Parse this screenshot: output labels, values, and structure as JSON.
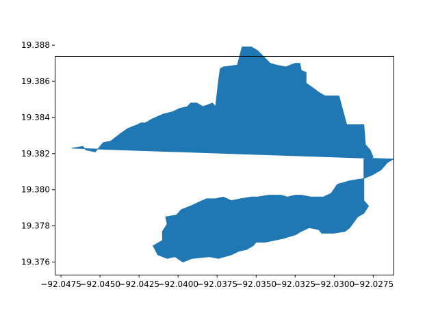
{
  "chart_data": {
    "type": "area",
    "title": "",
    "xlabel": "",
    "ylabel": "",
    "xlim": [
      -92.0479,
      -92.0262
    ],
    "ylim": [
      19.3753,
      19.3874
    ],
    "grid": false,
    "legend": "none",
    "fill_color": "#1f77b4",
    "x_ticks": [
      {
        "value": -92.0475,
        "label": "−92.0475"
      },
      {
        "value": -92.045,
        "label": "−92.0450"
      },
      {
        "value": -92.0425,
        "label": "−92.0425"
      },
      {
        "value": -92.04,
        "label": "−92.0400"
      },
      {
        "value": -92.0375,
        "label": "−92.0375"
      },
      {
        "value": -92.035,
        "label": "−92.0350"
      },
      {
        "value": -92.0325,
        "label": "−92.0325"
      },
      {
        "value": -92.03,
        "label": "−92.0300"
      },
      {
        "value": -92.0275,
        "label": "−92.0275"
      }
    ],
    "y_ticks": [
      {
        "value": 19.376,
        "label": "19.376"
      },
      {
        "value": 19.378,
        "label": "19.378"
      },
      {
        "value": 19.38,
        "label": "19.380"
      },
      {
        "value": 19.382,
        "label": "19.382"
      },
      {
        "value": 19.384,
        "label": "19.384"
      },
      {
        "value": 19.386,
        "label": "19.386"
      },
      {
        "value": 19.388,
        "label": "19.388"
      }
    ],
    "series": [
      {
        "polygons": [
          [
            [
              -92.0468,
              19.3823
            ],
            [
              -92.0461,
              19.3824
            ],
            [
              -92.0459,
              19.3822
            ],
            [
              -92.0453,
              19.3821
            ],
            [
              -92.0451,
              19.3823
            ],
            [
              -92.0448,
              19.3826
            ],
            [
              -92.0443,
              19.3827
            ],
            [
              -92.0437,
              19.3831
            ],
            [
              -92.0432,
              19.3834
            ],
            [
              -92.0426,
              19.3836
            ],
            [
              -92.0424,
              19.3837
            ],
            [
              -92.0421,
              19.3837
            ],
            [
              -92.0417,
              19.3839
            ],
            [
              -92.0412,
              19.3841
            ],
            [
              -92.0409,
              19.3842
            ],
            [
              -92.0404,
              19.3843
            ],
            [
              -92.0399,
              19.3845
            ],
            [
              -92.0394,
              19.3846
            ],
            [
              -92.0392,
              19.3848
            ],
            [
              -92.0388,
              19.3848
            ],
            [
              -92.0384,
              19.3846
            ],
            [
              -92.0378,
              19.3848
            ],
            [
              -92.0376,
              19.3846
            ],
            [
              -92.0374,
              19.3861
            ],
            [
              -92.0373,
              19.3867
            ],
            [
              -92.0371,
              19.3868
            ],
            [
              -92.0362,
              19.3869
            ],
            [
              -92.0359,
              19.3879
            ],
            [
              -92.0353,
              19.3879
            ],
            [
              -92.0349,
              19.3877
            ],
            [
              -92.0341,
              19.387
            ],
            [
              -92.0337,
              19.3869
            ],
            [
              -92.0331,
              19.3868
            ],
            [
              -92.0325,
              19.387
            ],
            [
              -92.0322,
              19.387
            ],
            [
              -92.0321,
              19.3866
            ],
            [
              -92.0318,
              19.3865
            ],
            [
              -92.0318,
              19.3859
            ],
            [
              -92.0313,
              19.3856
            ],
            [
              -92.031,
              19.3854
            ],
            [
              -92.0306,
              19.3852
            ],
            [
              -92.0297,
              19.3852
            ],
            [
              -92.0292,
              19.3836
            ],
            [
              -92.0281,
              19.3836
            ],
            [
              -92.028,
              19.3825
            ],
            [
              -92.0277,
              19.3822
            ],
            [
              -92.0275,
              19.3818
            ],
            [
              -92.0281,
              19.3817
            ],
            [
              -92.0281,
              19.3794
            ],
            [
              -92.0278,
              19.3791
            ],
            [
              -92.0281,
              19.3787
            ],
            [
              -92.0285,
              19.3785
            ],
            [
              -92.029,
              19.3779
            ],
            [
              -92.0293,
              19.3777
            ],
            [
              -92.03,
              19.3776
            ],
            [
              -92.0308,
              19.3776
            ],
            [
              -92.031,
              19.3778
            ],
            [
              -92.0316,
              19.3779
            ],
            [
              -92.0321,
              19.3777
            ],
            [
              -92.0325,
              19.3775
            ],
            [
              -92.0333,
              19.3773
            ],
            [
              -92.0344,
              19.3771
            ],
            [
              -92.035,
              19.3771
            ],
            [
              -92.0352,
              19.3769
            ],
            [
              -92.0356,
              19.3767
            ],
            [
              -92.0361,
              19.3766
            ],
            [
              -92.0366,
              19.3764
            ],
            [
              -92.0374,
              19.3762
            ],
            [
              -92.038,
              19.3763
            ],
            [
              -92.0391,
              19.3762
            ],
            [
              -92.0397,
              19.376
            ],
            [
              -92.0402,
              19.3763
            ],
            [
              -92.0407,
              19.3762
            ],
            [
              -92.0413,
              19.3764
            ],
            [
              -92.0416,
              19.3769
            ],
            [
              -92.0412,
              19.3771
            ],
            [
              -92.041,
              19.3772
            ],
            [
              -92.041,
              19.3777
            ],
            [
              -92.0407,
              19.3781
            ],
            [
              -92.0408,
              19.3785
            ],
            [
              -92.0401,
              19.3786
            ],
            [
              -92.0398,
              19.3789
            ],
            [
              -92.0392,
              19.3791
            ],
            [
              -92.0382,
              19.3795
            ],
            [
              -92.0376,
              19.3795
            ],
            [
              -92.0371,
              19.3796
            ],
            [
              -92.0366,
              19.3794
            ],
            [
              -92.036,
              19.3795
            ],
            [
              -92.0353,
              19.3796
            ],
            [
              -92.0349,
              19.3796
            ],
            [
              -92.0342,
              19.3797
            ],
            [
              -92.0334,
              19.3797
            ],
            [
              -92.033,
              19.3796
            ],
            [
              -92.0325,
              19.3797
            ],
            [
              -92.0321,
              19.3797
            ],
            [
              -92.0315,
              19.3796
            ],
            [
              -92.0307,
              19.3796
            ],
            [
              -92.0302,
              19.3798
            ],
            [
              -92.0298,
              19.3803
            ],
            [
              -92.029,
              19.3805
            ],
            [
              -92.0282,
              19.3806
            ],
            [
              -92.0276,
              19.3808
            ],
            [
              -92.027,
              19.3811
            ],
            [
              -92.0266,
              19.3815
            ],
            [
              -92.0262,
              19.3817
            ]
          ]
        ]
      }
    ]
  }
}
